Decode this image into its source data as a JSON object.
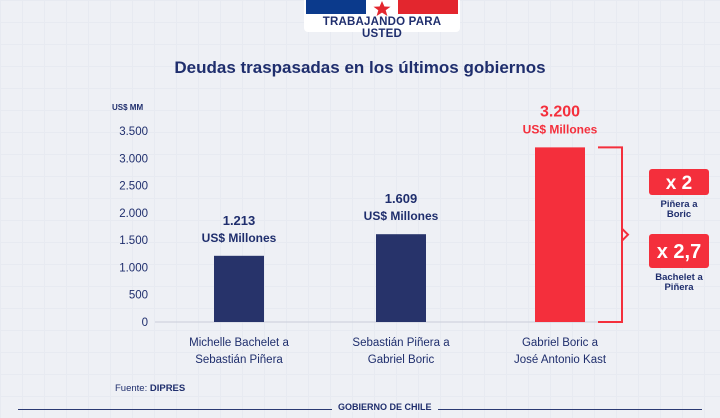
{
  "header": {
    "banner_text": "TRABAJANDO PARA USTED"
  },
  "colors": {
    "navy": "#27336a",
    "red": "#f42f3c",
    "text_navy": "#1f2e6d"
  },
  "chart_data": {
    "type": "bar",
    "title": "Deudas traspasadas en los últimos gobiernos",
    "ylabel": "US$ MM",
    "ylim": [
      0,
      3500
    ],
    "yticks": [
      0,
      500,
      1000,
      1500,
      2000,
      2500,
      3000,
      3500
    ],
    "ytick_labels": [
      "0",
      "500",
      "1.000",
      "1.500",
      "2.000",
      "2.500",
      "3.000",
      "3.500"
    ],
    "categories": [
      [
        "Michelle Bachelet a",
        "Sebastián Piñera"
      ],
      [
        "Sebastián Piñera a",
        "Gabriel Boric"
      ],
      [
        "Gabriel Boric a",
        "José Antonio Kast"
      ]
    ],
    "values": [
      1213,
      1609,
      3200
    ],
    "value_labels": [
      "1.213",
      "1.609",
      "3.200"
    ],
    "unit_labels": [
      "US$ Millones",
      "US$ Millones",
      "US$ Millones"
    ],
    "bar_colors": [
      "#27336a",
      "#27336a",
      "#f42f3c"
    ],
    "annotations": [
      {
        "badge": "x 2",
        "caption": [
          "Piñera a",
          "Boric"
        ]
      },
      {
        "badge": "x 2,7",
        "caption": [
          "Bachelet a",
          "Piñera"
        ]
      }
    ],
    "source_label": "Fuente:",
    "source_name": "DIPRES"
  },
  "footer": {
    "label": "GOBIERNO DE CHILE"
  }
}
